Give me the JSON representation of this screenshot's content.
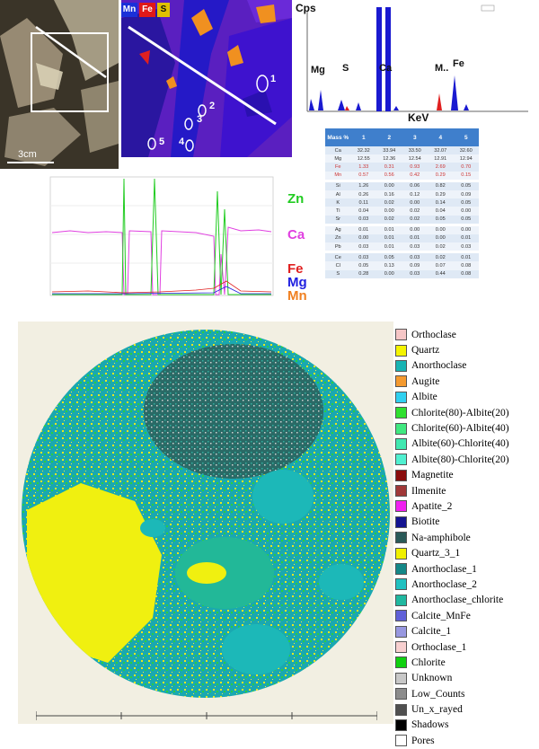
{
  "panel_a": {
    "scale_label": "3cm"
  },
  "panel_b": {
    "legend": [
      {
        "label": "Mn",
        "color": "#1a30d8"
      },
      {
        "label": "Fe",
        "color": "#e01818"
      },
      {
        "label": "S",
        "color": "#e0c000"
      }
    ],
    "point_labels": [
      "1",
      "2",
      "3",
      "4",
      "5"
    ]
  },
  "panel_c": {
    "y_axis_label": "Cps",
    "x_axis_label": "KeV",
    "peak_labels": [
      "Mg",
      "S",
      "Ca",
      "M..",
      "Fe"
    ]
  },
  "panel_d": {
    "header": [
      "Mass %",
      "1",
      "2",
      "3",
      "4",
      "5"
    ],
    "rows": [
      {
        "el": "Ca",
        "v": [
          "32.32",
          "33.94",
          "33.50",
          "32.07",
          "32.60"
        ],
        "hl": false
      },
      {
        "el": "Mg",
        "v": [
          "12.55",
          "12.36",
          "12.54",
          "12.91",
          "12.94"
        ],
        "hl": false
      },
      {
        "el": "Fe",
        "v": [
          "1.33",
          "0.31",
          "0.93",
          "2.69",
          "0.70"
        ],
        "hl": true
      },
      {
        "el": "Mn",
        "v": [
          "0.57",
          "0.56",
          "0.42",
          "0.29",
          "0.15"
        ],
        "hl": true
      },
      {
        "el": "Si",
        "v": [
          "1.26",
          "0.00",
          "0.06",
          "0.82",
          "0.05"
        ],
        "hl": false
      },
      {
        "el": "Al",
        "v": [
          "0.26",
          "0.16",
          "0.12",
          "0.29",
          "0.09"
        ],
        "hl": false
      },
      {
        "el": "K",
        "v": [
          "0.11",
          "0.02",
          "0.00",
          "0.14",
          "0.05"
        ],
        "hl": false
      },
      {
        "el": "Ti",
        "v": [
          "0.04",
          "0.00",
          "0.02",
          "0.04",
          "0.00"
        ],
        "hl": false
      },
      {
        "el": "Sr",
        "v": [
          "0.03",
          "0.02",
          "0.02",
          "0.05",
          "0.05"
        ],
        "hl": false
      },
      {
        "el": "Ag",
        "v": [
          "0.01",
          "0.01",
          "0.00",
          "0.00",
          "0.00"
        ],
        "hl": false
      },
      {
        "el": "Zn",
        "v": [
          "0.00",
          "0.01",
          "0.01",
          "0.00",
          "0.01"
        ],
        "hl": false
      },
      {
        "el": "Pb",
        "v": [
          "0.03",
          "0.01",
          "0.03",
          "0.02",
          "0.03"
        ],
        "hl": false
      },
      {
        "el": "Ce",
        "v": [
          "0.03",
          "0.05",
          "0.03",
          "0.02",
          "0.01"
        ],
        "hl": false
      },
      {
        "el": "Cl",
        "v": [
          "0.05",
          "0.13",
          "0.09",
          "0.07",
          "0.08"
        ],
        "hl": false
      },
      {
        "el": "S",
        "v": [
          "0.28",
          "0.00",
          "0.03",
          "0.44",
          "0.08"
        ],
        "hl": false
      }
    ]
  },
  "panel_e": {
    "labels": [
      {
        "text": "Zn",
        "color": "#22cc22"
      },
      {
        "text": "Ca",
        "color": "#e040e0"
      },
      {
        "text": "Fe",
        "color": "#e02020"
      },
      {
        "text": "Mg",
        "color": "#2020e0"
      },
      {
        "text": "Mn",
        "color": "#f08020"
      }
    ]
  },
  "legend": [
    {
      "label": "Orthoclase",
      "color": "#f6c6c6"
    },
    {
      "label": "Quartz",
      "color": "#f4f400"
    },
    {
      "label": "Anorthoclase",
      "color": "#18b4b4"
    },
    {
      "label": "Augite",
      "color": "#f49a30"
    },
    {
      "label": "Albite",
      "color": "#30d0f0"
    },
    {
      "label": "Chlorite(80)-Albite(20)",
      "color": "#30e030"
    },
    {
      "label": "Chlorite(60)-Albite(40)",
      "color": "#40e880"
    },
    {
      "label": "Albite(60)-Chlorite(40)",
      "color": "#40e8b0"
    },
    {
      "label": "Albite(80)-Chlorite(20)",
      "color": "#50f0d0"
    },
    {
      "label": "Magnetite",
      "color": "#8a0c0c"
    },
    {
      "label": "Ilmenite",
      "color": "#a03838"
    },
    {
      "label": "Apatite_2",
      "color": "#f020f0"
    },
    {
      "label": "Biotite",
      "color": "#141490"
    },
    {
      "label": "Na-amphibole",
      "color": "#2a5a58"
    },
    {
      "label": "Quartz_3_1",
      "color": "#f0f000"
    },
    {
      "label": "Anorthoclase_1",
      "color": "#148888"
    },
    {
      "label": "Anorthoclase_2",
      "color": "#20c0c0"
    },
    {
      "label": "Anorthoclase_chlorite",
      "color": "#20b8a0"
    },
    {
      "label": "Calcite_MnFe",
      "color": "#6060d8"
    },
    {
      "label": "Calcite_1",
      "color": "#9898e0"
    },
    {
      "label": "Orthoclase_1",
      "color": "#f8d0d0"
    },
    {
      "label": "Chlorite",
      "color": "#10d010"
    },
    {
      "label": "Unknown",
      "color": "#c8c8c8"
    },
    {
      "label": "Low_Counts",
      "color": "#8c8c8c"
    },
    {
      "label": "Un_x_rayed",
      "color": "#505050"
    },
    {
      "label": "Shadows",
      "color": "#000000"
    },
    {
      "label": "Pores",
      "color": "#ffffff"
    }
  ]
}
